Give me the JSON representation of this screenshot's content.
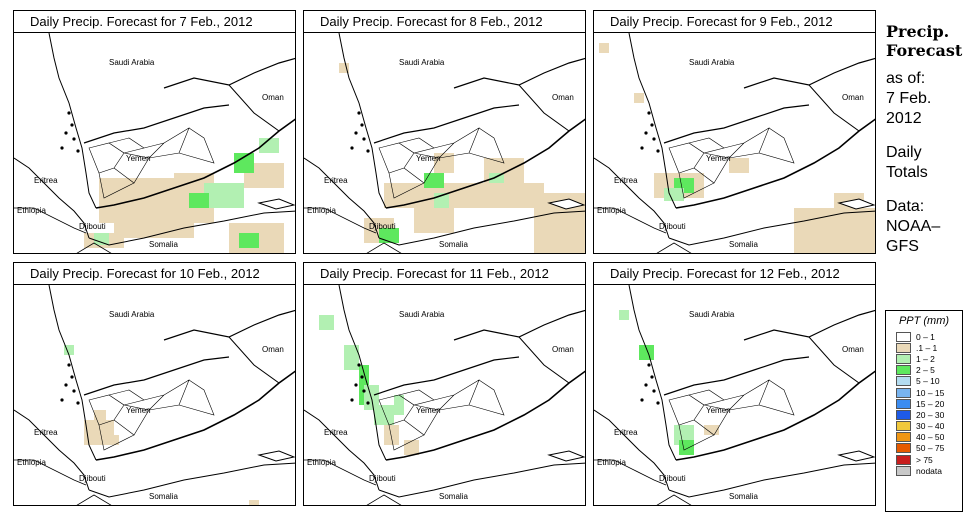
{
  "panels": [
    {
      "title": "Daily Precip. Forecast for  7 Feb., 2012"
    },
    {
      "title": "Daily Precip. Forecast for  8 Feb., 2012"
    },
    {
      "title": "Daily Precip. Forecast for  9 Feb., 2012"
    },
    {
      "title": "Daily Precip. Forecast for  10 Feb., 2012"
    },
    {
      "title": "Daily Precip. Forecast for  11 Feb., 2012"
    },
    {
      "title": "Daily Precip. Forecast for  12 Feb., 2012"
    }
  ],
  "map_labels": {
    "saudi": "Saudi Arabia",
    "oman": "Oman",
    "yemen": "Yemen",
    "eritrea": "Eritrea",
    "ethiopia": "Ethiopia",
    "djibouti": "Djibouti",
    "somalia": "Somalia"
  },
  "side": {
    "heading1": "Precip.",
    "heading2": "Forecast",
    "asof": "as of:",
    "date1": "7 Feb.",
    "date2": "2012",
    "daily1": "Daily",
    "daily2": "Totals",
    "data1": "Data:",
    "data2": "NOAA–",
    "data3": "GFS"
  },
  "legend": {
    "title": "PPT (mm)",
    "items": [
      {
        "label": "0 – 1",
        "color": "#ffffff"
      },
      {
        "label": ".1 – 1",
        "color": "#ead9b8"
      },
      {
        "label": "1 – 2",
        "color": "#b2f0b2"
      },
      {
        "label": "2 – 5",
        "color": "#5ee85e"
      },
      {
        "label": "5 – 10",
        "color": "#b4dcf0"
      },
      {
        "label": "10 – 15",
        "color": "#78b4f0"
      },
      {
        "label": "15 – 20",
        "color": "#3c8cf0"
      },
      {
        "label": "20 – 30",
        "color": "#1e5ae6"
      },
      {
        "label": "30 – 40",
        "color": "#f0c83c"
      },
      {
        "label": "40 – 50",
        "color": "#f09614"
      },
      {
        "label": "50 – 75",
        "color": "#e65a00"
      },
      {
        "label": "> 75",
        "color": "#c81e1e"
      },
      {
        "label": "nodata",
        "color": "#c8c8c8"
      }
    ]
  }
}
